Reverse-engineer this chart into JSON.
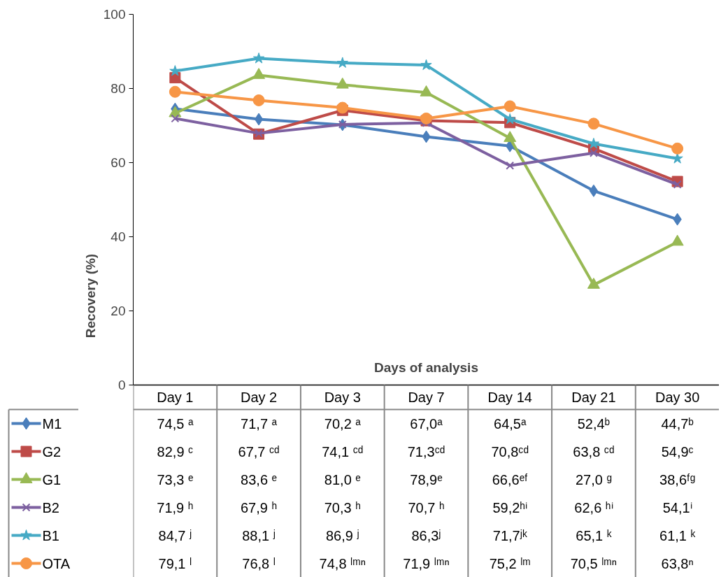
{
  "chart_data": {
    "type": "line",
    "ylabel": "Recovery (%)",
    "xlabel": "Days of analysis",
    "categories": [
      "Day 1",
      "Day 2",
      "Day 3",
      "Day 7",
      "Day 14",
      "Day 21",
      "Day 30"
    ],
    "ylim": [
      0,
      100
    ],
    "yticks": [
      0,
      20,
      40,
      60,
      80,
      100
    ],
    "legend": "bottom left",
    "line_style": "solid",
    "series": [
      {
        "name": "M1",
        "color": "#4a7ebb",
        "marker": "diamond",
        "values": [
          74.5,
          71.7,
          70.2,
          67.0,
          64.5,
          52.4,
          44.7
        ],
        "value_labels": [
          "74,5 ᵃ",
          "71,7 ᵃ",
          "70,2 ᵃ",
          "67,0ᵃ",
          "64,5ᵃ",
          "52,4ᵇ",
          "44,7ᵇ"
        ]
      },
      {
        "name": "G2",
        "color": "#be4b48",
        "marker": "square",
        "values": [
          82.9,
          67.7,
          74.1,
          71.3,
          70.8,
          63.8,
          54.9
        ],
        "value_labels": [
          "82,9 ᶜ",
          "67,7 ᶜᵈ",
          "74,1 ᶜᵈ",
          "71,3ᶜᵈ",
          "70,8ᶜᵈ",
          "63,8 ᶜᵈ",
          "54,9ᶜ"
        ]
      },
      {
        "name": "G1",
        "color": "#98b954",
        "marker": "triangle",
        "values": [
          73.3,
          83.6,
          81.0,
          78.9,
          66.6,
          27.0,
          38.6
        ],
        "value_labels": [
          "73,3 ᵉ",
          "83,6 ᵉ",
          "81,0 ᵉ",
          "78,9ᵉ",
          "66,6ᵉᶠ",
          "27,0 ᵍ",
          "38,6ᶠᵍ"
        ]
      },
      {
        "name": "B2",
        "color": "#7d60a0",
        "marker": "cross",
        "values": [
          71.9,
          67.9,
          70.3,
          70.7,
          59.2,
          62.6,
          54.1
        ],
        "value_labels": [
          "71,9 ʰ",
          "67,9 ʰ",
          "70,3 ʰ",
          "70,7 ʰ",
          "59,2ʰⁱ",
          "62,6 ʰⁱ",
          "54,1ⁱ"
        ]
      },
      {
        "name": "B1",
        "color": "#46aac5",
        "marker": "star",
        "values": [
          84.7,
          88.1,
          86.9,
          86.3,
          71.7,
          65.1,
          61.1
        ],
        "value_labels": [
          "84,7 ʲ",
          "88,1 ʲ",
          "86,9 ʲ",
          "86,3ʲ",
          "71,7ʲᵏ",
          "65,1 ᵏ",
          "61,1 ᵏ"
        ]
      },
      {
        "name": "OTA",
        "color": "#f79646",
        "marker": "circle",
        "values": [
          79.1,
          76.8,
          74.8,
          71.9,
          75.2,
          70.5,
          63.8
        ],
        "value_labels": [
          "79,1 ˡ",
          "76,8 ˡ",
          "74,8 ˡᵐⁿ",
          "71,9 ˡᵐⁿ",
          "75,2 ˡᵐ",
          "70,5 ˡᵐⁿ",
          "63,8ⁿ"
        ]
      }
    ]
  }
}
